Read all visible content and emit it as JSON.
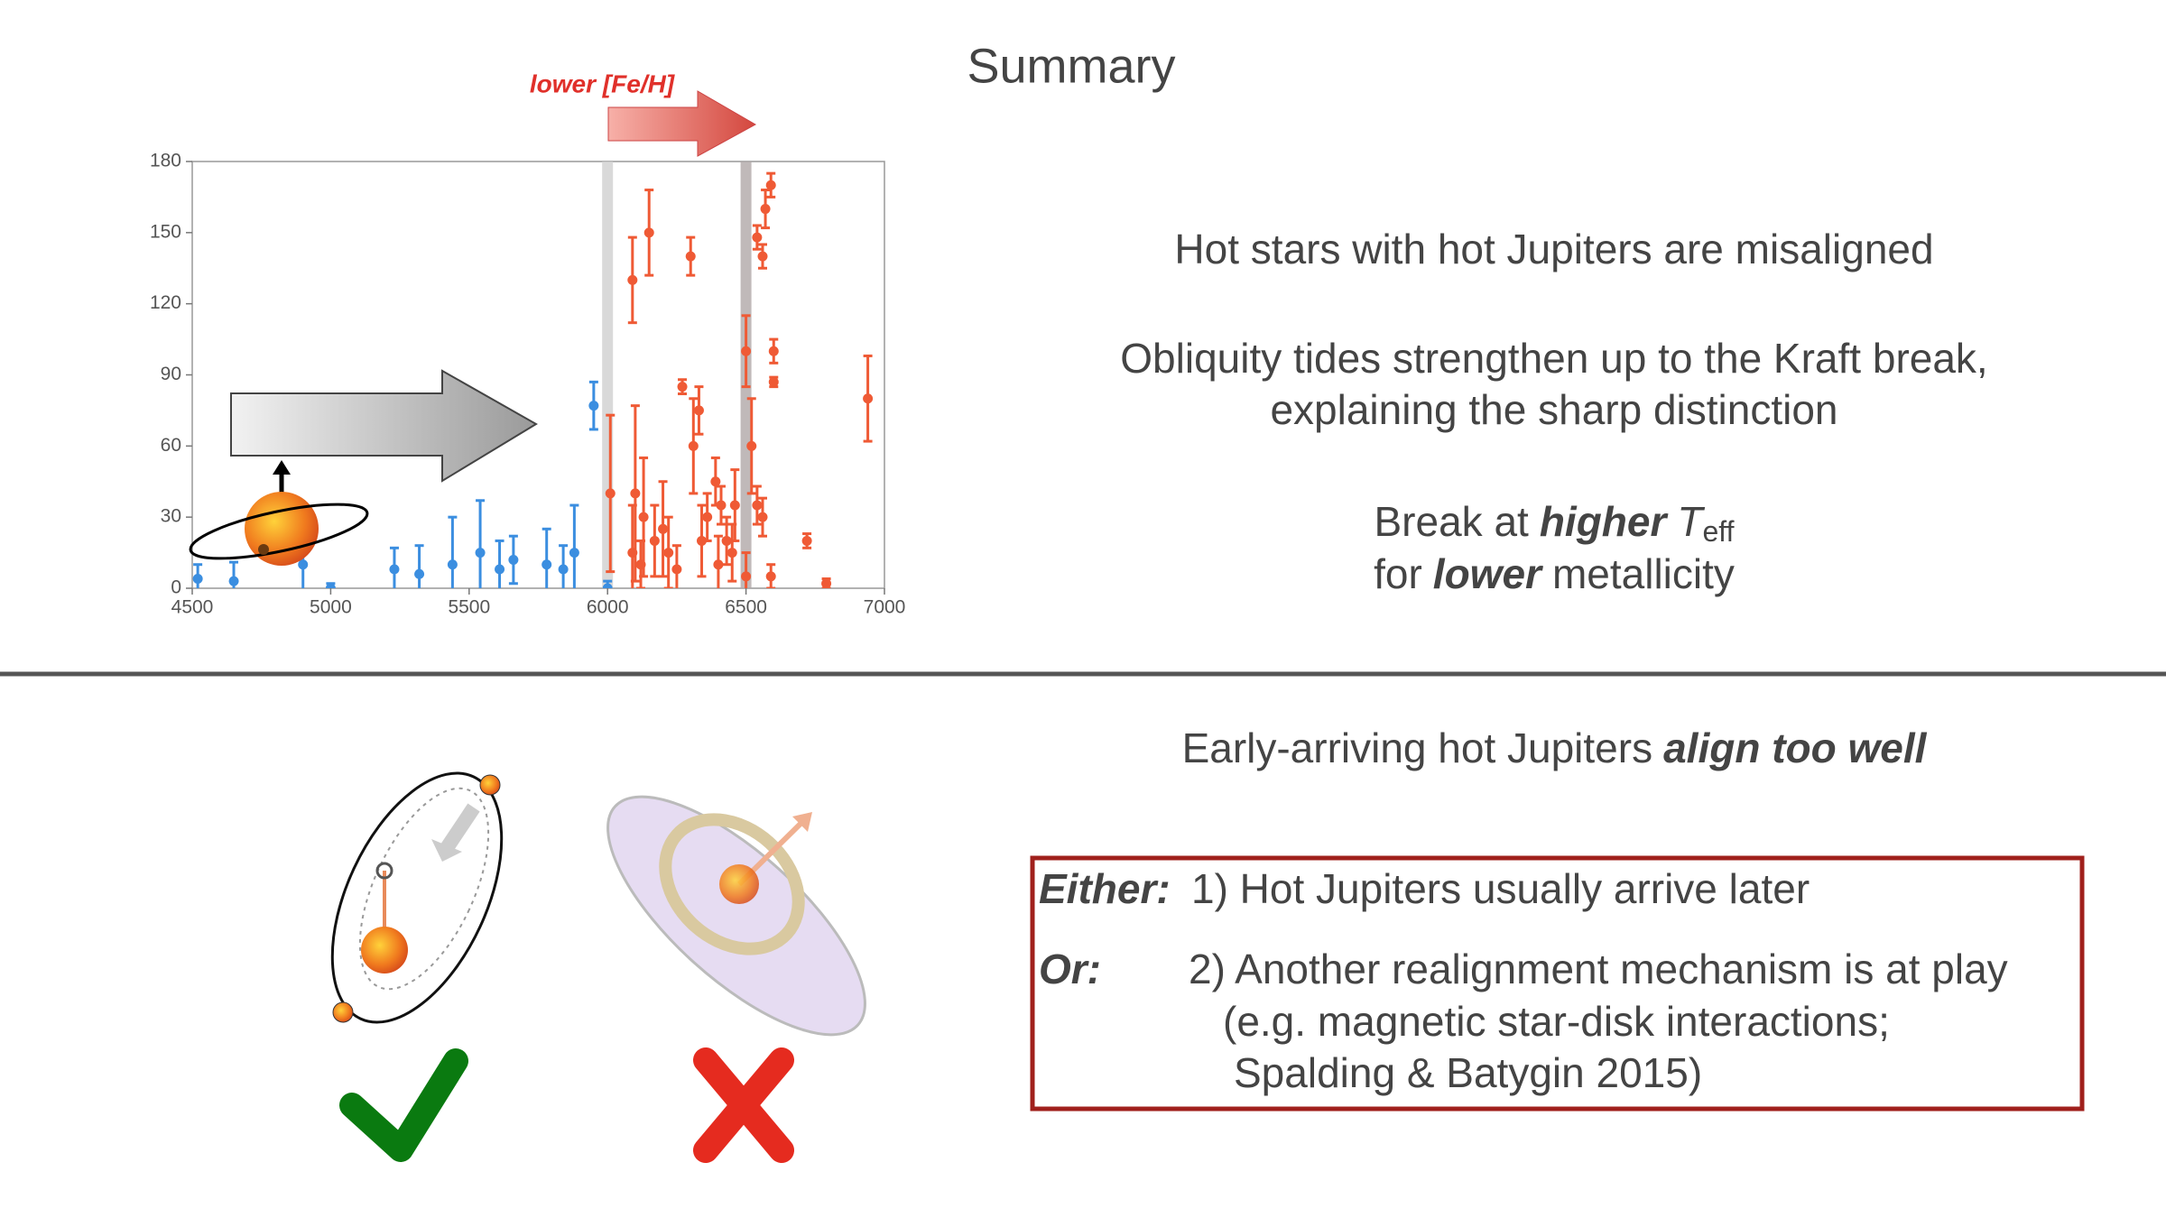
{
  "title": "Summary",
  "chart_data": {
    "type": "scatter",
    "annotation": "lower [Fe/H]",
    "xlim": [
      4500,
      7000
    ],
    "xticks": [
      4500,
      5000,
      5500,
      6000,
      6500,
      7000
    ],
    "ylim": [
      0,
      180
    ],
    "yticks": [
      0,
      30,
      60,
      90,
      120,
      150,
      180
    ],
    "bands": [
      6000,
      6500
    ],
    "series": [
      {
        "color": "#3b8ee0",
        "x": [
          4520,
          4650,
          4900,
          5000,
          5230,
          5320,
          5440,
          5540,
          5610,
          5660,
          5780,
          5840,
          5880,
          5950,
          6000
        ],
        "values": [
          4,
          3,
          10,
          0,
          8,
          6,
          10,
          15,
          8,
          12,
          10,
          8,
          15,
          77,
          0
        ],
        "errors": [
          6,
          8,
          12,
          2,
          9,
          12,
          20,
          22,
          12,
          10,
          15,
          10,
          20,
          10,
          3
        ]
      },
      {
        "color": "#ef5a35",
        "x": [
          6010,
          6090,
          6090,
          6120,
          6150,
          6130,
          6100,
          6170,
          6200,
          6220,
          6250,
          6300,
          6310,
          6330,
          6270,
          6340,
          6360,
          6390,
          6400,
          6410,
          6430,
          6450,
          6460,
          6500,
          6500,
          6540,
          6560,
          6570,
          6590,
          6600,
          6600,
          6540,
          6590,
          6720,
          6790,
          6940,
          6520,
          6560
        ],
        "values": [
          40,
          130,
          15,
          10,
          150,
          30,
          40,
          20,
          25,
          15,
          8,
          140,
          60,
          75,
          85,
          20,
          30,
          45,
          10,
          35,
          20,
          15,
          35,
          100,
          5,
          148,
          140,
          160,
          170,
          100,
          87,
          35,
          5,
          20,
          2,
          80,
          60,
          30
        ],
        "errors": [
          33,
          18,
          20,
          10,
          18,
          25,
          37,
          15,
          20,
          15,
          10,
          8,
          20,
          10,
          3,
          15,
          10,
          10,
          12,
          8,
          10,
          12,
          15,
          15,
          10,
          5,
          5,
          8,
          5,
          5,
          2,
          8,
          5,
          3,
          2,
          18,
          20,
          8
        ]
      }
    ]
  },
  "findings": {
    "misaligned": "Hot stars with hot Jupiters are misaligned",
    "tides": [
      "Obliquity tides strengthen up to the Kraft break,",
      "explaining the sharp distinction"
    ],
    "break": {
      "lead": "Break at",
      "emph": "higher",
      "symbol": "T",
      "subscript": "eff",
      "lead2": "for",
      "emph2": "lower",
      "tail2": "metallicity"
    }
  },
  "early": {
    "lead": "Early-arriving hot Jupiters",
    "emph": "align too well"
  },
  "options": [
    {
      "label": "Either:",
      "lines": [
        "1) Hot Jupiters usually arrive later"
      ]
    },
    {
      "label": "Or:",
      "lines": [
        "2) Another realignment mechanism is at play",
        "(e.g. magnetic star-disk interactions;",
        "Spalding & Batygin 2015)"
      ]
    }
  ]
}
